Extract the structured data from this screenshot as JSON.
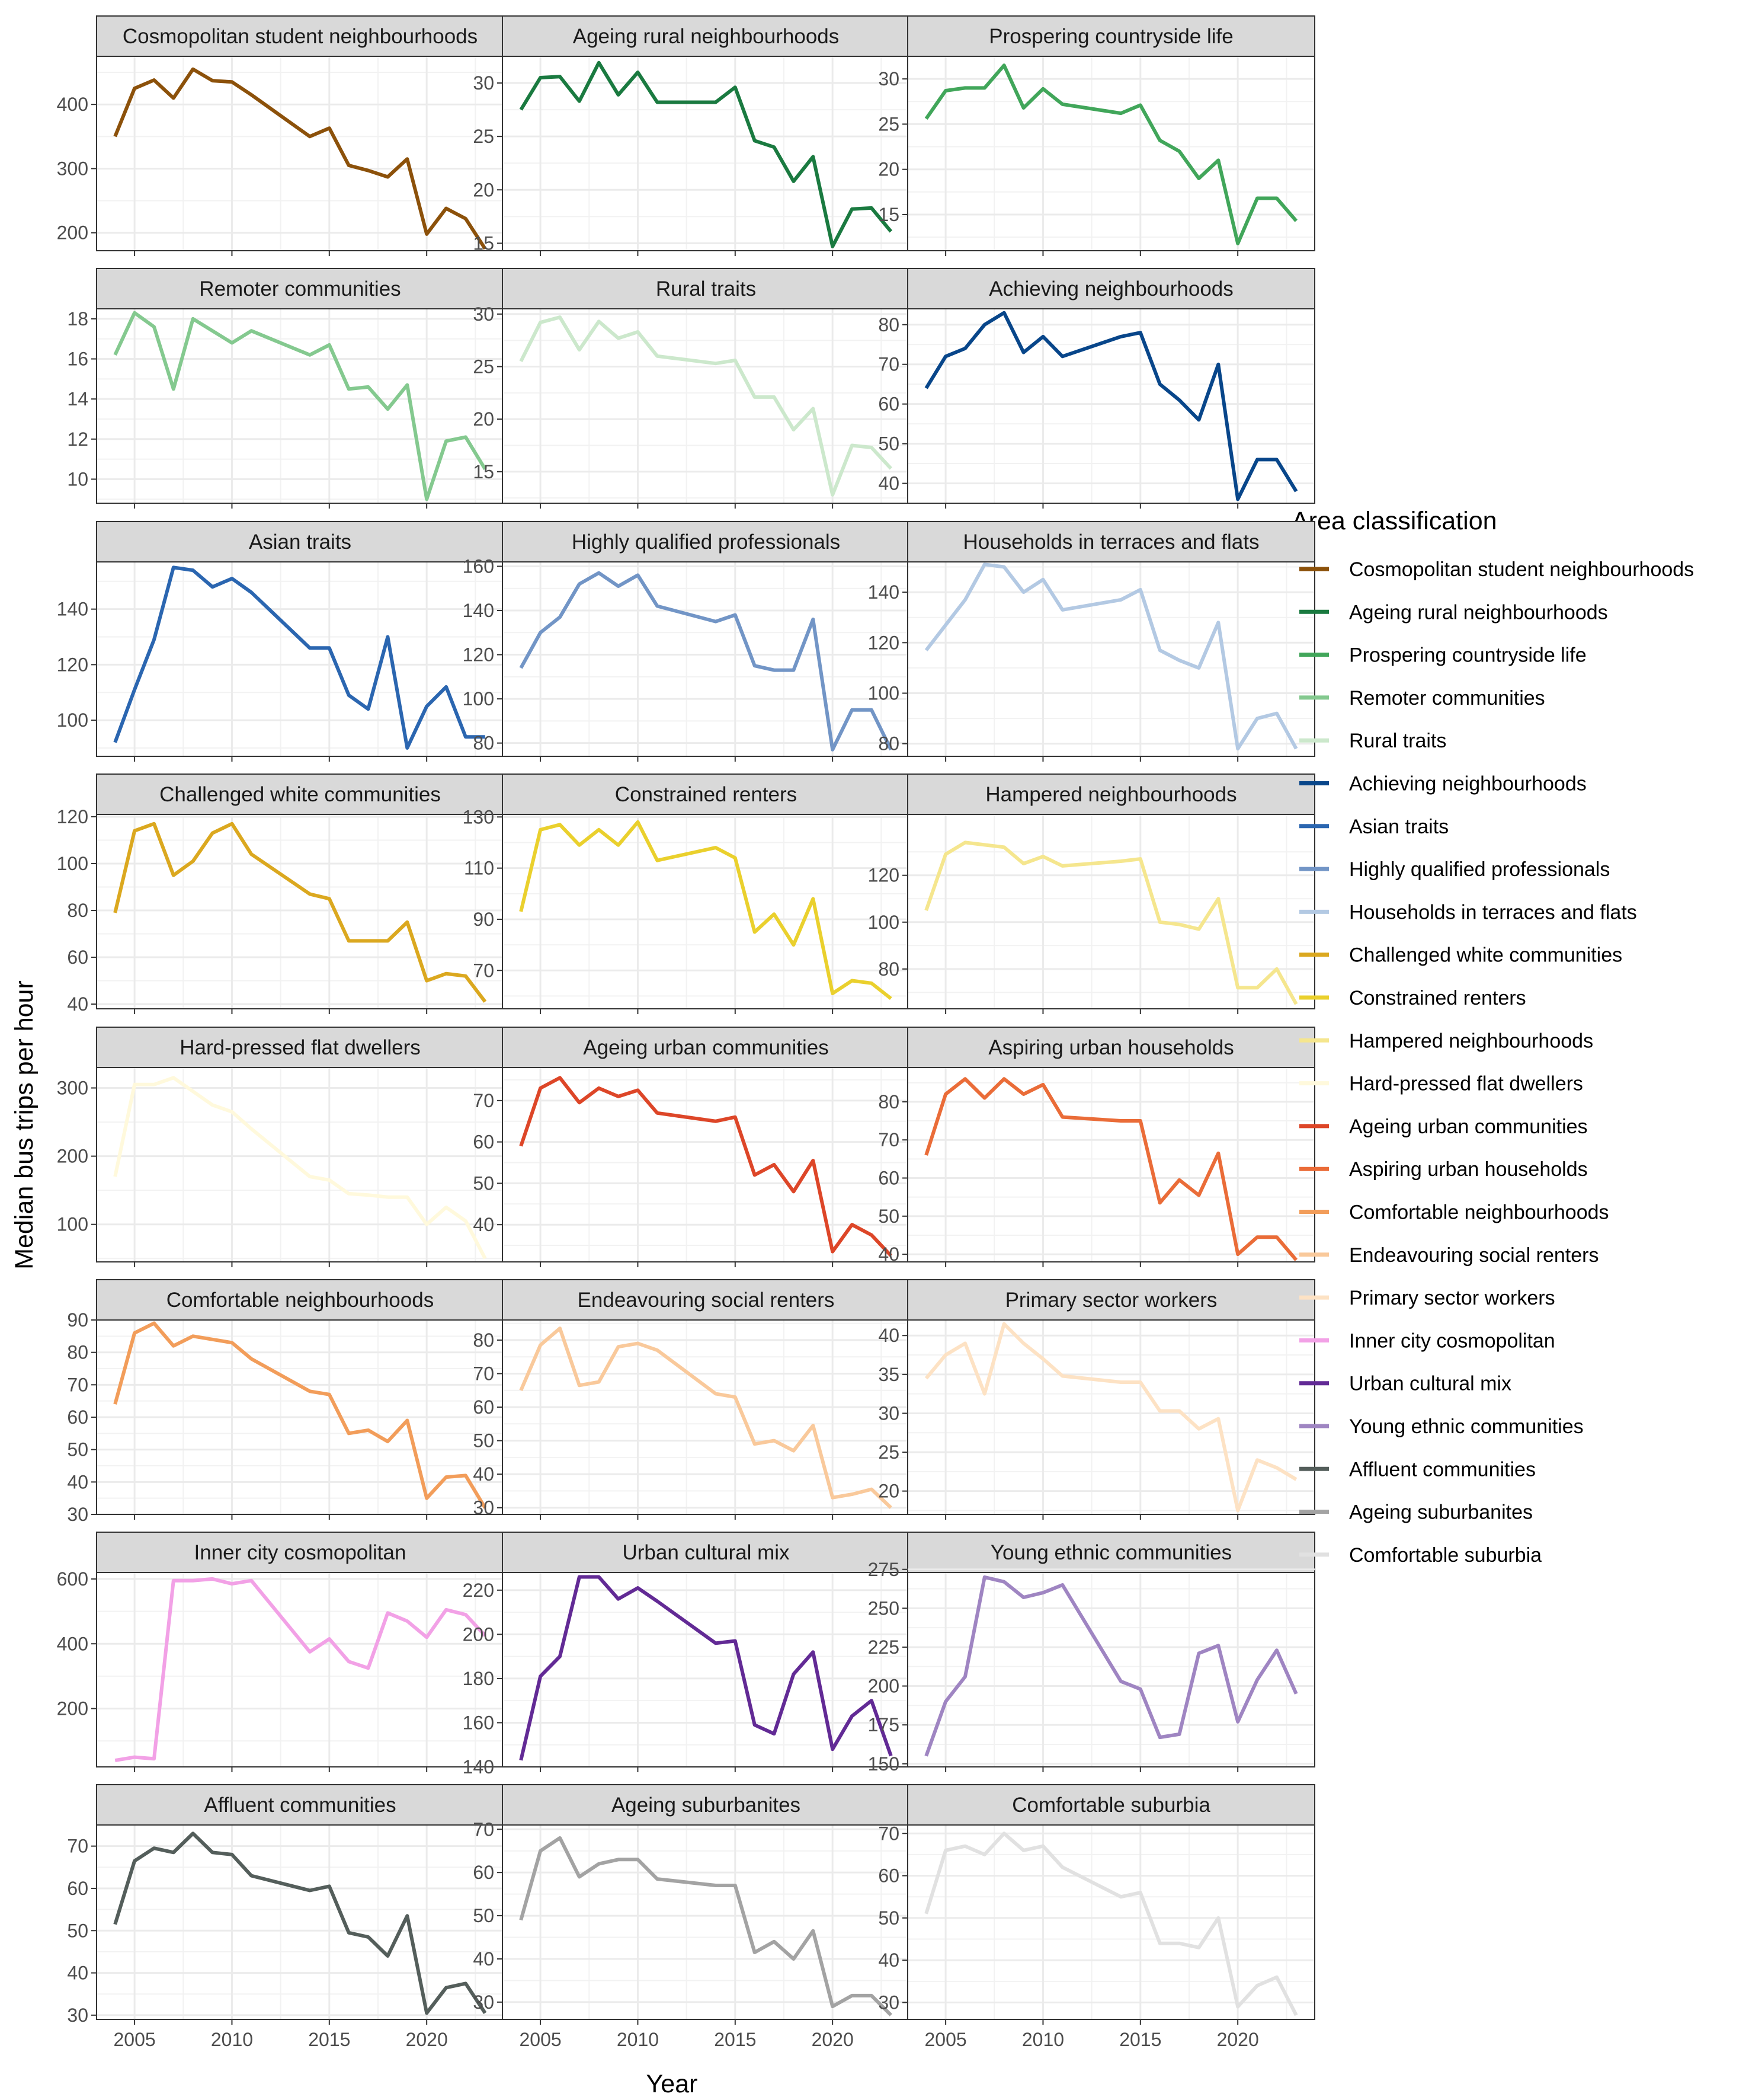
{
  "chart_data": {
    "type": "line",
    "xlabel": "Year",
    "ylabel": "Median bus trips per hour",
    "legend_title": "Area classification",
    "legend_position": "right",
    "grid": true,
    "x_ticks": [
      2005,
      2010,
      2015,
      2020
    ],
    "x": [
      2004,
      2005,
      2006,
      2007,
      2008,
      2009,
      2010,
      2011,
      2014,
      2015,
      2016,
      2017,
      2018,
      2019,
      2020,
      2021,
      2022,
      2023
    ],
    "panels": [
      {
        "name": "Cosmopolitan student neighbourhoods",
        "color": "#8c510a",
        "ylim": [
          172,
          475
        ],
        "yticks": [
          200,
          300,
          400
        ],
        "values": [
          350,
          425,
          438,
          410,
          455,
          437,
          435,
          415,
          350,
          363,
          305,
          297,
          287,
          315,
          198,
          238,
          222,
          175
        ]
      },
      {
        "name": "Ageing rural neighbourhoods",
        "color": "#1a7a40",
        "ylim": [
          14.3,
          32.5
        ],
        "yticks": [
          15,
          20,
          25,
          30
        ],
        "values": [
          27.5,
          30.5,
          30.6,
          28.3,
          31.9,
          28.9,
          31.0,
          28.2,
          28.2,
          29.6,
          24.6,
          24.0,
          20.8,
          23.1,
          14.7,
          18.2,
          18.3,
          16.1
        ]
      },
      {
        "name": "Prospering countryside life",
        "color": "#41a65a",
        "ylim": [
          11,
          32.5
        ],
        "yticks": [
          15,
          20,
          25,
          30
        ],
        "values": [
          25.6,
          28.7,
          29.0,
          29.0,
          31.5,
          26.8,
          28.9,
          27.2,
          26.2,
          27.1,
          23.2,
          22.0,
          19.0,
          21.0,
          11.8,
          16.8,
          16.8,
          14.3
        ]
      },
      {
        "name": "Remoter communities",
        "color": "#84c98f",
        "ylim": [
          8.8,
          18.5
        ],
        "yticks": [
          10,
          12,
          14,
          16,
          18
        ],
        "values": [
          16.2,
          18.3,
          17.6,
          14.5,
          18.0,
          17.4,
          16.8,
          17.4,
          16.2,
          16.7,
          14.5,
          14.6,
          13.5,
          14.7,
          9.0,
          11.9,
          12.1,
          10.5
        ]
      },
      {
        "name": "Rural traits",
        "color": "#cce8cc",
        "ylim": [
          12,
          30.5
        ],
        "yticks": [
          15,
          20,
          25,
          30
        ],
        "values": [
          25.5,
          29.2,
          29.7,
          26.6,
          29.3,
          27.7,
          28.3,
          26.0,
          25.3,
          25.6,
          22.1,
          22.1,
          19.0,
          21.0,
          12.8,
          17.5,
          17.3,
          15.3
        ]
      },
      {
        "name": "Achieving neighbourhoods",
        "color": "#08468a",
        "ylim": [
          35,
          84
        ],
        "yticks": [
          40,
          50,
          60,
          70,
          80
        ],
        "values": [
          64,
          72,
          74,
          80,
          83,
          73,
          77,
          72,
          77,
          78,
          65,
          61,
          56,
          70,
          36,
          46,
          46,
          38
        ]
      },
      {
        "name": "Asian traits",
        "color": "#2b66b0",
        "ylim": [
          87,
          157
        ],
        "yticks": [
          100,
          120,
          140
        ],
        "values": [
          92,
          111,
          129,
          155,
          154,
          148,
          151,
          146,
          126,
          126,
          109,
          104,
          130,
          90,
          105,
          112,
          94,
          94
        ]
      },
      {
        "name": "Highly qualified professionals",
        "color": "#7295c6",
        "ylim": [
          74,
          162
        ],
        "yticks": [
          80,
          100,
          120,
          140,
          160
        ],
        "values": [
          114,
          130,
          137,
          152,
          157,
          151,
          156,
          142,
          135,
          138,
          115,
          113,
          113,
          136,
          77,
          95,
          95,
          77
        ]
      },
      {
        "name": "Households in terraces and flats",
        "color": "#b3c9e3",
        "ylim": [
          75,
          152
        ],
        "yticks": [
          80,
          100,
          120,
          140
        ],
        "values": [
          117,
          127,
          137,
          151,
          150,
          140,
          145,
          133,
          137,
          141,
          117,
          113,
          110,
          128,
          78,
          90,
          92,
          78
        ]
      },
      {
        "name": "Challenged white communities",
        "color": "#dba81f",
        "ylim": [
          38,
          121
        ],
        "yticks": [
          40,
          60,
          80,
          100,
          120
        ],
        "values": [
          79,
          114,
          117,
          95,
          101,
          113,
          117,
          104,
          87,
          85,
          67,
          67,
          67,
          75,
          50,
          53,
          52,
          41
        ]
      },
      {
        "name": "Constrained renters",
        "color": "#ead02d",
        "ylim": [
          55,
          131
        ],
        "yticks": [
          70,
          90,
          110,
          130
        ],
        "values": [
          93,
          125,
          127,
          119,
          125,
          119,
          128,
          113,
          118,
          114,
          85,
          92,
          80,
          98,
          61,
          66,
          65,
          59
        ]
      },
      {
        "name": "Hampered neighbourhoods",
        "color": "#f5e68e",
        "ylim": [
          63,
          146
        ],
        "yticks": [
          80,
          100,
          120
        ],
        "values": [
          105,
          129,
          134,
          133,
          132,
          125,
          128,
          124,
          126,
          127,
          100,
          99,
          97,
          110,
          72,
          72,
          80,
          65
        ]
      },
      {
        "name": "Hard-pressed flat dwellers",
        "color": "#fff9dc",
        "ylim": [
          45,
          330
        ],
        "yticks": [
          100,
          200,
          300
        ],
        "values": [
          170,
          305,
          305,
          315,
          295,
          275,
          265,
          240,
          170,
          165,
          145,
          143,
          140,
          140,
          100,
          125,
          105,
          50
        ]
      },
      {
        "name": "Ageing urban communities",
        "color": "#dd4628",
        "ylim": [
          31,
          78
        ],
        "yticks": [
          40,
          50,
          60,
          70
        ],
        "values": [
          59,
          73,
          75.5,
          69.5,
          73,
          71,
          72.5,
          67,
          65,
          66,
          52,
          54.5,
          48,
          55.5,
          33.5,
          40,
          37.5,
          32.5
        ]
      },
      {
        "name": "Aspiring urban households",
        "color": "#ea6c38",
        "ylim": [
          38,
          89
        ],
        "yticks": [
          40,
          50,
          60,
          70,
          80
        ],
        "values": [
          66,
          82,
          86,
          81,
          86,
          82,
          84.5,
          76,
          75,
          75,
          53.5,
          59.5,
          55.5,
          66.5,
          40,
          44.5,
          44.5,
          38.5
        ]
      },
      {
        "name": "Comfortable neighbourhoods",
        "color": "#f29d5a",
        "ylim": [
          30,
          90
        ],
        "yticks": [
          30,
          40,
          50,
          60,
          70,
          80,
          90
        ],
        "values": [
          64,
          86,
          89,
          82,
          85,
          84,
          83,
          78,
          68,
          67,
          55,
          56,
          52.5,
          59,
          35,
          41.5,
          42,
          32
        ]
      },
      {
        "name": "Endeavouring social renters",
        "color": "#f9c99b",
        "ylim": [
          28,
          86
        ],
        "yticks": [
          30,
          40,
          50,
          60,
          70,
          80
        ],
        "values": [
          65,
          78.5,
          83.5,
          66.5,
          67.5,
          78,
          79,
          77,
          64,
          63,
          49,
          50,
          47,
          54.5,
          33,
          34,
          35.5,
          30
        ]
      },
      {
        "name": "Primary sector workers",
        "color": "#fde2c4",
        "ylim": [
          17,
          42
        ],
        "yticks": [
          20,
          25,
          30,
          35,
          40
        ],
        "values": [
          34.5,
          37.5,
          39,
          32.5,
          41.5,
          39,
          37,
          34.8,
          34,
          34,
          30.3,
          30.3,
          28,
          29.3,
          17.5,
          24,
          23,
          21.5
        ]
      },
      {
        "name": "Inner city cosmopolitan",
        "color": "#f2a1e6",
        "ylim": [
          20,
          620
        ],
        "yticks": [
          200,
          400,
          600
        ],
        "values": [
          40,
          50,
          45,
          595,
          595,
          600,
          585,
          595,
          375,
          415,
          345,
          325,
          495,
          470,
          420,
          505,
          490,
          425
        ]
      },
      {
        "name": "Urban cultural mix",
        "color": "#622a95",
        "ylim": [
          140,
          228
        ],
        "yticks": [
          140,
          160,
          180,
          200,
          220
        ],
        "values": [
          143,
          181,
          190,
          226,
          226,
          216,
          221,
          215,
          196,
          197,
          159,
          155,
          182,
          192,
          148,
          163,
          170,
          145
        ]
      },
      {
        "name": "Young ethnic communities",
        "color": "#9f85c2",
        "ylim": [
          148,
          273
        ],
        "yticks": [
          150,
          175,
          200,
          225,
          250,
          275
        ],
        "values": [
          155,
          190,
          206,
          270,
          267,
          257,
          260,
          265,
          203,
          198,
          167,
          169,
          221,
          226,
          177,
          204,
          223,
          195
        ]
      },
      {
        "name": "Affluent communities",
        "color": "#545e5b",
        "ylim": [
          29,
          75
        ],
        "yticks": [
          30,
          40,
          50,
          60,
          70
        ],
        "values": [
          51.5,
          66.5,
          69.5,
          68.5,
          73,
          68.5,
          68,
          63,
          59.5,
          60.5,
          49.5,
          48.5,
          44,
          53.5,
          30.5,
          36.5,
          37.5,
          30.5
        ]
      },
      {
        "name": "Ageing suburbanites",
        "color": "#a3a3a3",
        "ylim": [
          26,
          71
        ],
        "yticks": [
          30,
          40,
          50,
          60,
          70
        ],
        "values": [
          49,
          65,
          68,
          59,
          62,
          63,
          63,
          58.5,
          57,
          57,
          41.5,
          44,
          40,
          46.5,
          29,
          31.5,
          31.5,
          27
        ]
      },
      {
        "name": "Comfortable suburbia",
        "color": "#e1e1e1",
        "ylim": [
          26,
          72
        ],
        "yticks": [
          30,
          40,
          50,
          60,
          70
        ],
        "values": [
          51,
          66,
          67,
          65,
          70,
          66,
          67,
          62,
          55,
          56,
          44,
          44,
          43,
          50,
          29,
          34,
          36,
          27
        ]
      }
    ]
  }
}
